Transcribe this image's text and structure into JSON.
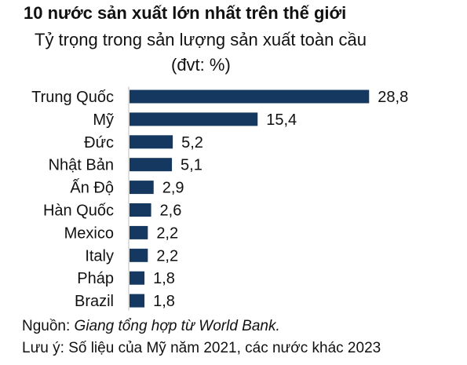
{
  "chart_data": {
    "type": "bar",
    "orientation": "horizontal",
    "title": "10 nước sản xuất lớn nhất trên thế giới",
    "subtitle": "Tỷ trọng trong sản lượng sản xuất toàn cầu",
    "unit_label": "(đvt: %)",
    "categories": [
      "Trung Quốc",
      "Mỹ",
      "Đức",
      "Nhật Bản",
      "Ấn Độ",
      "Hàn Quốc",
      "Mexico",
      "Italy",
      "Pháp",
      "Brazil"
    ],
    "values": [
      28.8,
      15.4,
      5.2,
      5.1,
      2.9,
      2.6,
      2.2,
      2.2,
      1.8,
      1.8
    ],
    "value_labels": [
      "28,8",
      "15,4",
      "5,2",
      "5,1",
      "2,9",
      "2,6",
      "2,2",
      "2,2",
      "1,8",
      "1,8"
    ],
    "bar_color": "#14385f",
    "grid": false,
    "legend": "none"
  },
  "footer": {
    "source_prefix": "Nguồn: ",
    "source_text": "Giang tổng hợp từ World Bank.",
    "note": "Lưu ý: Số liệu của Mỹ năm 2021, các nước khác 2023"
  }
}
